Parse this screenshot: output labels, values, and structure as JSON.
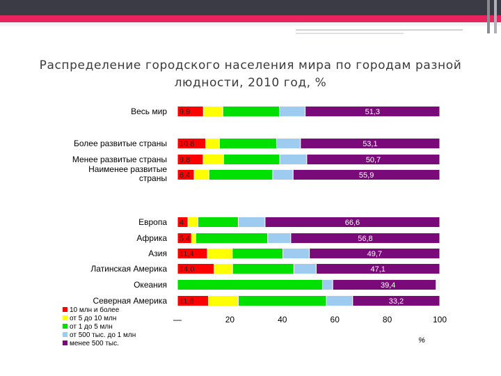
{
  "slide": {
    "title_line1": "Распределение городского населения мира по городам разной",
    "title_line2": "людности, 2010 год, %",
    "colors": {
      "topbar_dark": "#3b3b45",
      "topbar_pink": "#e8245e",
      "topbar_light": "#f3f3f5"
    }
  },
  "chart_data": {
    "type": "bar",
    "orientation": "horizontal",
    "stacked": true,
    "title": "Распределение городского населения мира по городам разной людности, 2010 год, %",
    "xlabel": "%",
    "xlim": [
      0,
      100
    ],
    "xticks": [
      "—",
      "20",
      "40",
      "60",
      "80",
      "100"
    ],
    "categories": [
      [
        "Весь мир"
      ],
      [
        "Более развитые страны"
      ],
      [
        "Менее развитые страны"
      ],
      [
        "Наименее развитые",
        "страны"
      ],
      [
        "Европа"
      ],
      [
        "Африка"
      ],
      [
        "Азия"
      ],
      [
        "Латинская Америка"
      ],
      [
        "Океания"
      ],
      [
        "Северная Америка"
      ]
    ],
    "series": [
      {
        "name": "10 млн и более",
        "color": "#ff0000",
        "values": [
          9.9,
          10.8,
          9.8,
          6.4,
          4,
          5.4,
          11.4,
          14.0,
          0,
          11.8
        ]
      },
      {
        "name": "от 5 до 10 млн",
        "color": "#ffff00",
        "values": [
          7.4,
          5.2,
          7.8,
          5.6,
          3.8,
          1.6,
          9.5,
          7.0,
          0,
          11.4
        ]
      },
      {
        "name": "от 1 до 5 млн",
        "color": "#00e000",
        "values": [
          21.6,
          21.8,
          21.4,
          24.3,
          15.4,
          27.4,
          19.3,
          23.4,
          55.3,
          33.6
        ]
      },
      {
        "name": "от 500 тыс. до 1 млн",
        "color": "#9ecbf0",
        "values": [
          9.8,
          9.1,
          10.3,
          7.8,
          10.2,
          8.8,
          10.1,
          8.5,
          3.9,
          10.0
        ]
      },
      {
        "name": "менее 500 тыс.",
        "color": "#7a0a7a",
        "values": [
          51.3,
          53.1,
          50.7,
          55.9,
          66.6,
          56.8,
          49.7,
          47.1,
          39.4,
          33.2
        ]
      }
    ],
    "data_labels": [
      [
        "9,9",
        "51,3"
      ],
      [
        "10,8",
        "53,1"
      ],
      [
        "9,8",
        "50,7"
      ],
      [
        "6,4",
        "55,9"
      ],
      [
        "4",
        "66,6"
      ],
      [
        "5,4",
        "56,8"
      ],
      [
        "11,4",
        "49,7"
      ],
      [
        "14,0",
        "47,1"
      ],
      [
        "",
        "39,4"
      ],
      [
        "11,8",
        "33,2"
      ]
    ],
    "legend": {
      "position": "bottom-left",
      "entries": [
        "10 млн и более",
        "от 5 до 10 млн",
        "от 1 до 5 млн",
        "от 500 тыс. до 1 млн",
        "менее 500 тыс."
      ]
    },
    "unit_label": "%"
  }
}
